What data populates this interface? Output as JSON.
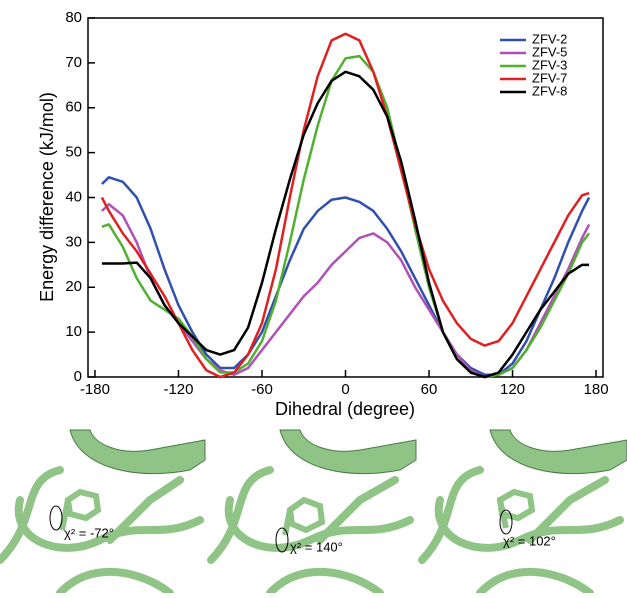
{
  "chart_data": {
    "type": "line",
    "xlabel": "Dihedral (degree)",
    "ylabel": "Energy difference (kJ/mol)",
    "x": [
      -175,
      -170,
      -160,
      -150,
      -140,
      -130,
      -120,
      -110,
      -100,
      -90,
      -80,
      -70,
      -60,
      -50,
      -40,
      -30,
      -20,
      -10,
      0,
      10,
      20,
      30,
      40,
      50,
      60,
      70,
      80,
      90,
      100,
      110,
      120,
      130,
      140,
      150,
      160,
      170,
      175
    ],
    "series": [
      {
        "name": "ZFV-2",
        "color": "#3050b0",
        "values": [
          43,
          44.5,
          43.5,
          40,
          33,
          24,
          16,
          10,
          5,
          2,
          2,
          5,
          10,
          18,
          26,
          33,
          37,
          39.5,
          40,
          39,
          37,
          33,
          28,
          22,
          16,
          10,
          5,
          2,
          0.5,
          0.5,
          3,
          8,
          15,
          22,
          30,
          37,
          40
        ]
      },
      {
        "name": "ZFV-5",
        "color": "#b050b8",
        "values": [
          37,
          38.5,
          36,
          30,
          22,
          16,
          12,
          8,
          4,
          1.5,
          0.5,
          2,
          6,
          10,
          14,
          18,
          21,
          25,
          28,
          31,
          32,
          30,
          26,
          20,
          15,
          10,
          5,
          1.5,
          0,
          0.5,
          2,
          6,
          12,
          18,
          24,
          31,
          34
        ]
      },
      {
        "name": "ZFV-3",
        "color": "#50b030",
        "values": [
          33.5,
          34,
          29,
          22,
          17,
          15,
          13,
          9,
          4,
          1,
          1,
          3,
          8,
          17,
          30,
          44,
          56,
          66,
          71,
          71.5,
          68,
          60,
          47,
          33,
          20,
          10,
          4,
          1,
          0,
          0.5,
          2,
          6,
          11,
          17,
          23,
          30,
          32
        ]
      },
      {
        "name": "ZFV-7",
        "color": "#e02020",
        "values": [
          40,
          37,
          32,
          28,
          23,
          18,
          12,
          6,
          1.5,
          0,
          1,
          5,
          12,
          24,
          40,
          55,
          67,
          75,
          76.5,
          75,
          68,
          58,
          46,
          34,
          24,
          17,
          12,
          8.5,
          7,
          8,
          12,
          18,
          24,
          30,
          36,
          40.5,
          41
        ]
      },
      {
        "name": "ZFV-8",
        "color": "#000000",
        "values": [
          25.3,
          25.3,
          25.3,
          25.5,
          22,
          16,
          12,
          9,
          6,
          5,
          6,
          11,
          21,
          33,
          44,
          54,
          61,
          66,
          68,
          67,
          64,
          58,
          48,
          35,
          21,
          10,
          4,
          1,
          0,
          1,
          5,
          10,
          15,
          19,
          23,
          25,
          25
        ]
      }
    ],
    "xlim": [
      -185,
      185
    ],
    "ylim": [
      0,
      80
    ],
    "xticks": [
      -180,
      -120,
      -60,
      0,
      60,
      120,
      180
    ],
    "yticks": [
      0,
      10,
      20,
      30,
      40,
      50,
      60,
      70,
      80
    ],
    "legend": "upper right"
  },
  "panels": [
    {
      "label": "χ² = -72°"
    },
    {
      "label": "χ² = 140°"
    },
    {
      "label": "χ² = 102°"
    }
  ]
}
